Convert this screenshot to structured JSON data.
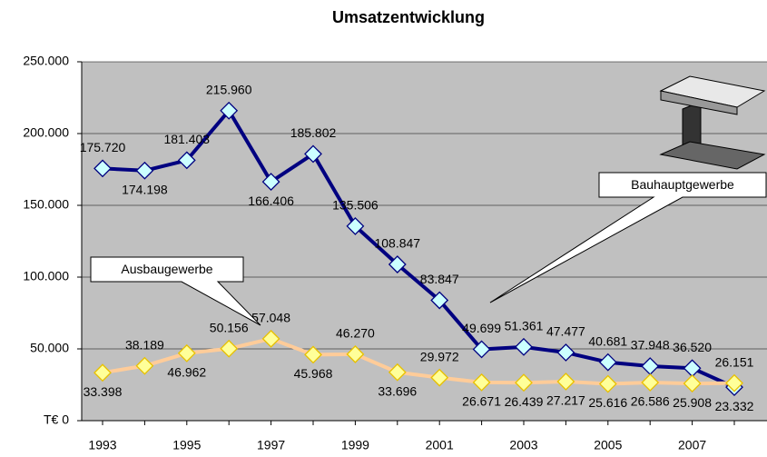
{
  "chart_data": {
    "type": "line",
    "title": "Umsatzentwicklung",
    "categories": [
      "1993",
      null,
      "1995",
      null,
      "1997",
      null,
      "1999",
      null,
      "2001",
      null,
      "2003",
      null,
      "2005",
      null,
      "2007",
      null
    ],
    "series": [
      {
        "name": "Bauhauptgewerbe",
        "color": "#000080",
        "marker_color": "#ccffff",
        "values": [
          175720,
          174198,
          181403,
          215960,
          166406,
          185802,
          135506,
          108847,
          83847,
          49699,
          51361,
          47477,
          40681,
          37948,
          36520,
          23332
        ],
        "value_labels": [
          "175.720",
          "174.198",
          "181.403",
          "215.960",
          "166.406",
          "185.802",
          "135.506",
          "108.847",
          "83.847",
          "49.699",
          "51.361",
          "47.477",
          "40.681",
          "37.948",
          "36.520",
          "23.332"
        ]
      },
      {
        "name": "Ausbaugewerbe",
        "color": "#ffcc99",
        "marker_color": "#ffff99",
        "values": [
          33398,
          38189,
          46962,
          50156,
          57048,
          45968,
          46270,
          33696,
          29972,
          26671,
          26439,
          27217,
          25616,
          26586,
          25908,
          26151
        ],
        "value_labels": [
          "33.398",
          "38.189",
          "46.962",
          "50.156",
          "57.048",
          "45.968",
          "46.270",
          "33.696",
          "29.972",
          "26.671",
          "26.439",
          "27.217",
          "25.616",
          "26.586",
          "25.908",
          "26.151"
        ]
      }
    ],
    "ylim": [
      0,
      250000
    ],
    "yticks": [
      {
        "value": 0,
        "label": "T€ 0"
      },
      {
        "value": 50000,
        "label": "50.000"
      },
      {
        "value": 100000,
        "label": "100.000"
      },
      {
        "value": 150000,
        "label": "150.000"
      },
      {
        "value": 200000,
        "label": "200.000"
      },
      {
        "value": 250000,
        "label": "250.000"
      }
    ],
    "plot_background": "#c0c0c0"
  }
}
